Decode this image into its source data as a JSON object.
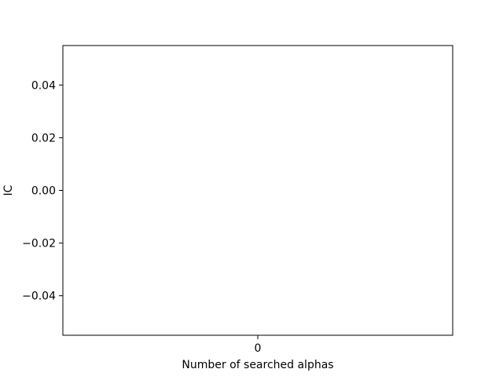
{
  "chart_data": {
    "type": "line",
    "title": "",
    "xlabel": "Number of searched alphas",
    "ylabel": "IC",
    "x": [],
    "series": [
      {
        "values": []
      }
    ],
    "xlim": [
      -0.055,
      0.055
    ],
    "ylim": [
      -0.055,
      0.055
    ],
    "xticks": [
      0
    ],
    "xtick_labels": [
      "0"
    ],
    "yticks": [
      0.04,
      0.02,
      0.0,
      -0.02,
      -0.04
    ],
    "ytick_labels": [
      "0.04",
      "0.02",
      "0.00",
      "−0.02",
      "−0.04"
    ],
    "grid": false,
    "legend": "none"
  }
}
